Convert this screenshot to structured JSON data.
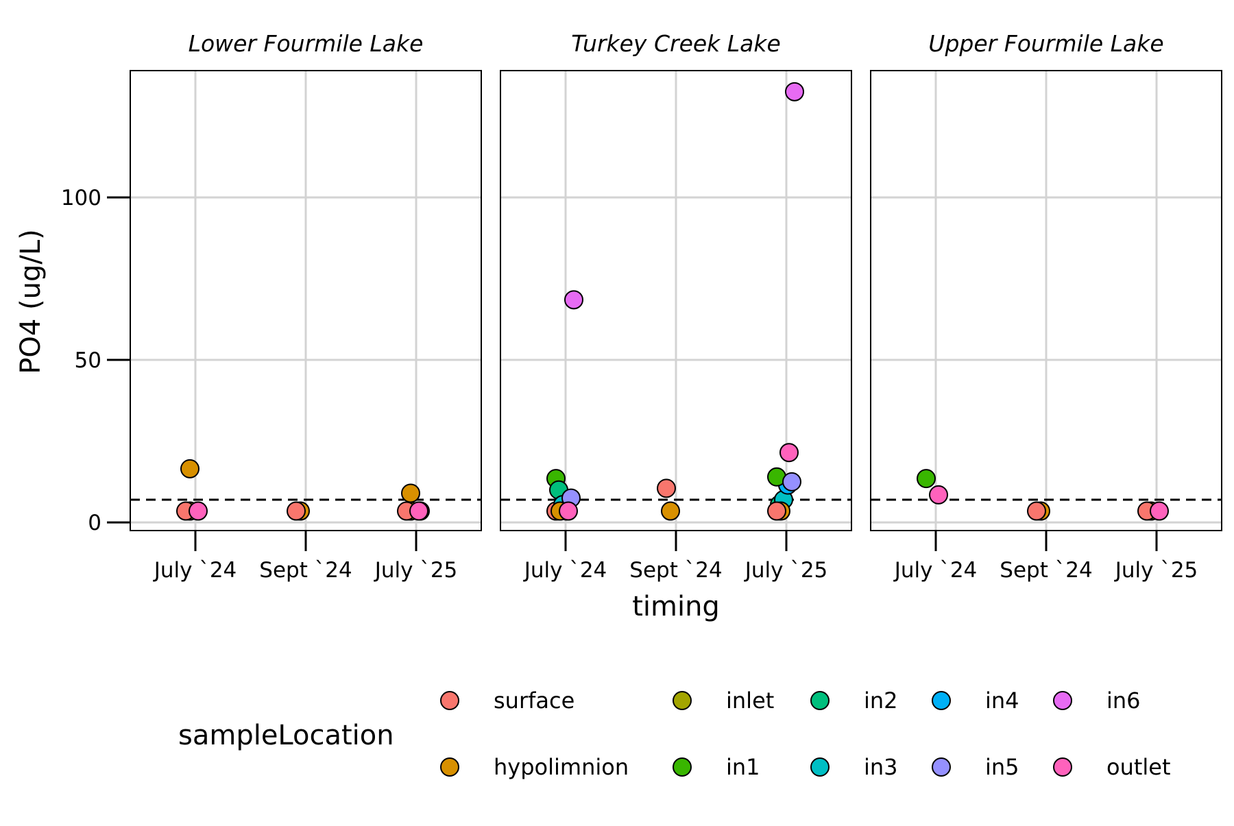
{
  "chart_data": {
    "type": "scatter",
    "title": "",
    "xlabel": "timing",
    "ylabel": "PO4 (ug/L)",
    "categories": [
      "July `24",
      "Sept `24",
      "July `25"
    ],
    "ylim": [
      -2.5,
      139
    ],
    "yticks": [
      0,
      50,
      100
    ],
    "reference_line": {
      "y": 7,
      "style": "dashed",
      "color": "#000000"
    },
    "grid": true,
    "legend": {
      "title": "sampleLocation",
      "position": "bottom",
      "entries": [
        {
          "name": "surface",
          "color": "#F8766D"
        },
        {
          "name": "hypolimnion",
          "color": "#D89000"
        },
        {
          "name": "inlet",
          "color": "#A3A500"
        },
        {
          "name": "in1",
          "color": "#39B600"
        },
        {
          "name": "in2",
          "color": "#00BF7D"
        },
        {
          "name": "in3",
          "color": "#00BFC4"
        },
        {
          "name": "in4",
          "color": "#00B0F6"
        },
        {
          "name": "in5",
          "color": "#9590FF"
        },
        {
          "name": "in6",
          "color": "#E76BF3"
        },
        {
          "name": "outlet",
          "color": "#FF62BC"
        }
      ]
    },
    "facets": [
      {
        "title": "Lower Fourmile Lake",
        "points": [
          {
            "x": "July `24",
            "y": 3.5,
            "location": "hypolimnion"
          },
          {
            "x": "July `24",
            "y": 16.5,
            "location": "hypolimnion"
          },
          {
            "x": "July `24",
            "y": 3.5,
            "location": "surface"
          },
          {
            "x": "July `24",
            "y": 3.5,
            "location": "outlet"
          },
          {
            "x": "Sept `24",
            "y": 3.5,
            "location": "hypolimnion"
          },
          {
            "x": "Sept `24",
            "y": 3.5,
            "location": "surface"
          },
          {
            "x": "July `25",
            "y": 3.5,
            "location": "inlet"
          },
          {
            "x": "July `25",
            "y": 9,
            "location": "hypolimnion"
          },
          {
            "x": "July `25",
            "y": 3.5,
            "location": "hypolimnion"
          },
          {
            "x": "July `25",
            "y": 3.5,
            "location": "surface"
          },
          {
            "x": "July `25",
            "y": 3.5,
            "location": "outlet"
          }
        ]
      },
      {
        "title": "Turkey Creek Lake",
        "points": [
          {
            "x": "July `24",
            "y": 3.5,
            "location": "surface"
          },
          {
            "x": "July `24",
            "y": 13.5,
            "location": "in1"
          },
          {
            "x": "July `24",
            "y": 10,
            "location": "in2"
          },
          {
            "x": "July `24",
            "y": 5.5,
            "location": "in3"
          },
          {
            "x": "July `24",
            "y": 3.5,
            "location": "in4"
          },
          {
            "x": "July `24",
            "y": 7.5,
            "location": "in5"
          },
          {
            "x": "July `24",
            "y": 3.5,
            "location": "hypolimnion"
          },
          {
            "x": "July `24",
            "y": 68.5,
            "location": "in6"
          },
          {
            "x": "July `24",
            "y": 3.5,
            "location": "outlet"
          },
          {
            "x": "Sept `24",
            "y": 3.5,
            "location": "hypolimnion"
          },
          {
            "x": "Sept `24",
            "y": 10.5,
            "location": "surface"
          },
          {
            "x": "July `25",
            "y": 21.5,
            "location": "outlet"
          },
          {
            "x": "July `25",
            "y": 5.5,
            "location": "in2"
          },
          {
            "x": "July `25",
            "y": 7,
            "location": "in3"
          },
          {
            "x": "July `25",
            "y": 11.5,
            "location": "in4"
          },
          {
            "x": "July `25",
            "y": 14,
            "location": "in1"
          },
          {
            "x": "July `25",
            "y": 12.5,
            "location": "in5"
          },
          {
            "x": "July `25",
            "y": 132.5,
            "location": "in6"
          },
          {
            "x": "July `25",
            "y": 3.5,
            "location": "hypolimnion"
          },
          {
            "x": "July `25",
            "y": 3.5,
            "location": "surface"
          }
        ]
      },
      {
        "title": "Upper Fourmile Lake",
        "points": [
          {
            "x": "July `24",
            "y": 13.5,
            "location": "in1"
          },
          {
            "x": "July `24",
            "y": 8.5,
            "location": "outlet"
          },
          {
            "x": "Sept `24",
            "y": 3.5,
            "location": "hypolimnion"
          },
          {
            "x": "Sept `24",
            "y": 3.5,
            "location": "surface"
          },
          {
            "x": "July `25",
            "y": 3.5,
            "location": "hypolimnion"
          },
          {
            "x": "July `25",
            "y": 3.5,
            "location": "surface"
          },
          {
            "x": "July `25",
            "y": 3.5,
            "location": "outlet"
          }
        ]
      }
    ]
  }
}
